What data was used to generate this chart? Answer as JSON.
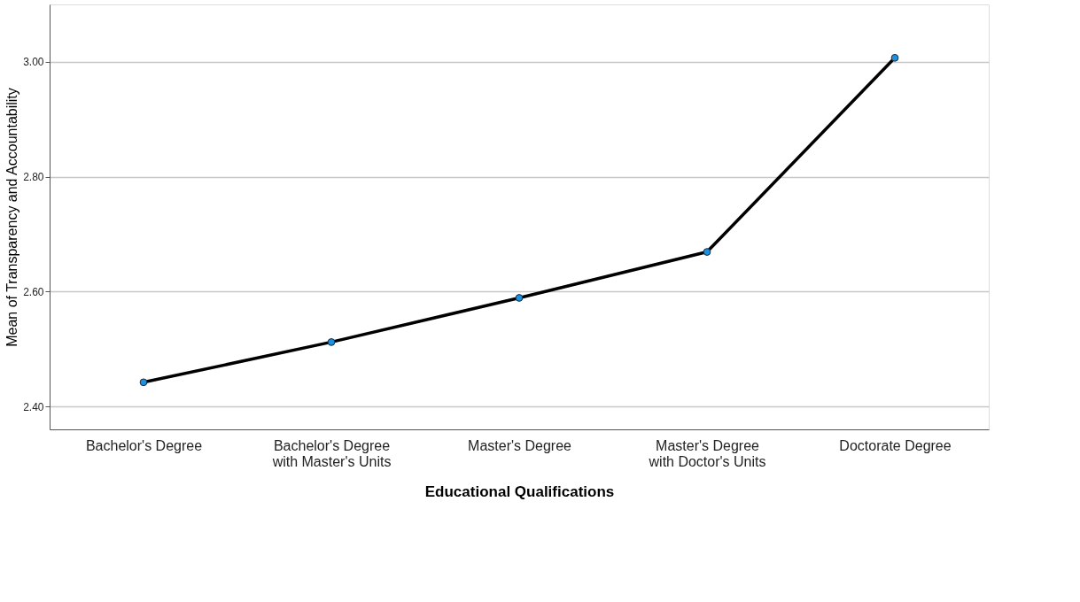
{
  "chart_data": {
    "type": "line",
    "xlabel": "Educational Qualifications",
    "ylabel": "Mean of Transparency and Accountability",
    "categories": [
      "Bachelor's Degree",
      "Bachelor's Degree with Master's Units",
      "Master's Degree",
      "Master's Degree with Doctor's Units",
      "Doctorate Degree"
    ],
    "series": [
      {
        "color": "#000000",
        "values": [
          2.442,
          2.512,
          2.589,
          2.669,
          3.007
        ]
      }
    ],
    "ylim": [
      2.36,
      3.1
    ],
    "yticks": [
      {
        "value": 2.4,
        "label": "2.40"
      },
      {
        "value": 2.6,
        "label": "2.60"
      },
      {
        "value": 2.8,
        "label": "2.80"
      },
      {
        "value": 3.0,
        "label": "3.00"
      }
    ],
    "grid": "y",
    "marker": "circle",
    "line_style": "solid"
  }
}
